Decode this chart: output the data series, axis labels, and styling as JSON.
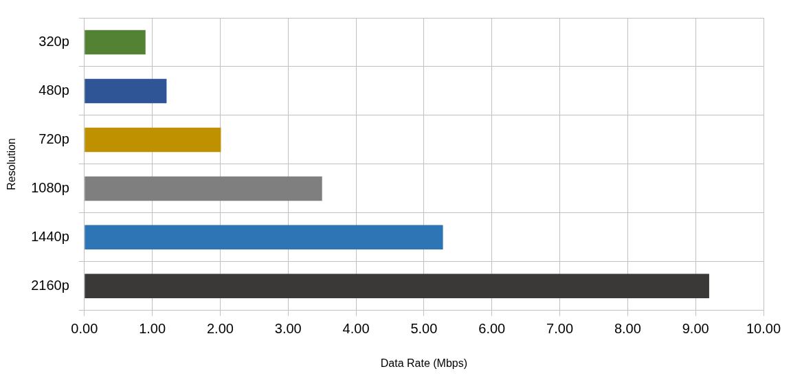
{
  "chart_data": {
    "type": "bar",
    "orientation": "horizontal",
    "xlabel": "Data Rate (Mbps)",
    "ylabel": "Resolution",
    "categories": [
      "320p",
      "480p",
      "720p",
      "1080p",
      "1440p",
      "2160p"
    ],
    "values": [
      0.9,
      1.21,
      2.01,
      3.5,
      5.28,
      9.2
    ],
    "colors": [
      "#548235",
      "#2f5597",
      "#bf9000",
      "#7f7f7f",
      "#2e75b6",
      "#3b3838"
    ],
    "xlim": [
      0,
      10
    ],
    "xticks": [
      {
        "value": 0,
        "label": "0.00"
      },
      {
        "value": 1,
        "label": "1.00"
      },
      {
        "value": 2,
        "label": "2.00"
      },
      {
        "value": 3,
        "label": "3.00"
      },
      {
        "value": 4,
        "label": "4.00"
      },
      {
        "value": 5,
        "label": "5.00"
      },
      {
        "value": 6,
        "label": "6.00"
      },
      {
        "value": 7,
        "label": "7.00"
      },
      {
        "value": 8,
        "label": "8.00"
      },
      {
        "value": 9,
        "label": "9.00"
      },
      {
        "value": 10,
        "label": "10.00"
      }
    ],
    "grid": true
  }
}
